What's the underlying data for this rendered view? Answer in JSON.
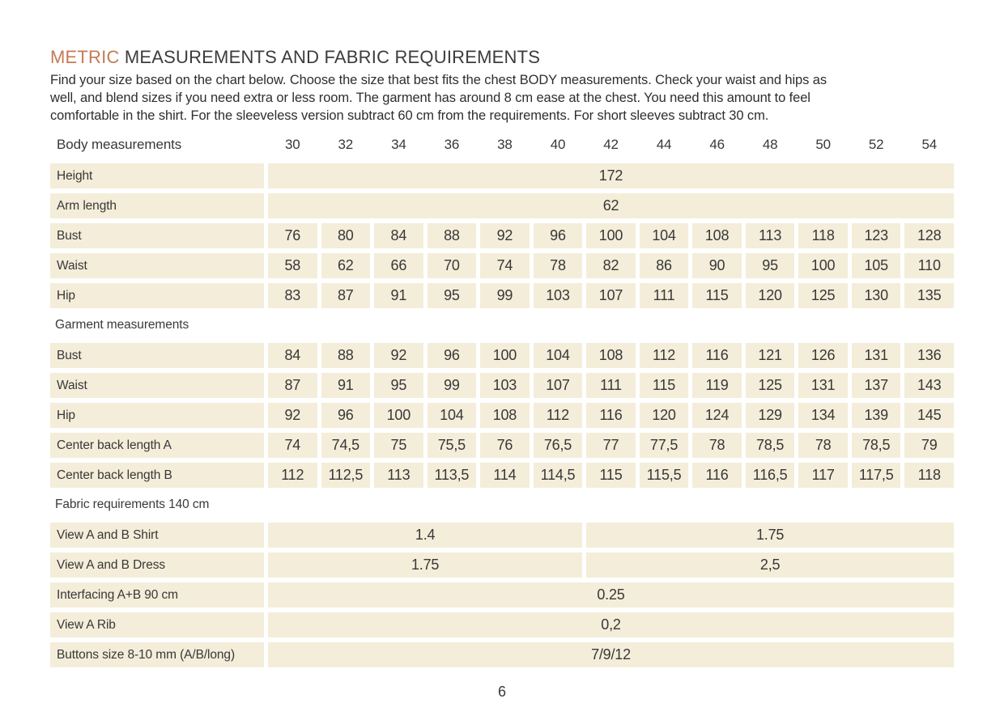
{
  "title": {
    "accent": "METRIC",
    "rest": " MEASUREMENTS AND FABRIC REQUIREMENTS"
  },
  "intro": {
    "line1": "Find your size based on the chart below. Choose the size that best fits the chest BODY measurements.  Check your waist and hips as",
    "line2": "well, and blend sizes if you need extra or less room. The garment has around 8 cm ease at the chest. You need this amount to feel",
    "line3": "comfortable in the shirt. For the sleeveless version subtract 60 cm from the requirements. For short sleeves subtract 30 cm."
  },
  "colors": {
    "accent": "#c57a55",
    "cell_background": "#f4edd9",
    "text": "#3a3a3a"
  },
  "table": {
    "header": {
      "label": "Body measurements",
      "sizes": [
        "30",
        "32",
        "34",
        "36",
        "38",
        "40",
        "42",
        "44",
        "46",
        "48",
        "50",
        "52",
        "54"
      ]
    },
    "rows": [
      {
        "type": "merged",
        "label": "Height",
        "value": "172"
      },
      {
        "type": "merged",
        "label": "Arm length",
        "value": "62"
      },
      {
        "type": "cells",
        "label": "Bust",
        "values": [
          "76",
          "80",
          "84",
          "88",
          "92",
          "96",
          "100",
          "104",
          "108",
          "113",
          "118",
          "123",
          "128"
        ]
      },
      {
        "type": "cells",
        "label": "Waist",
        "values": [
          "58",
          "62",
          "66",
          "70",
          "74",
          "78",
          "82",
          "86",
          "90",
          "95",
          "100",
          "105",
          "110"
        ]
      },
      {
        "type": "cells",
        "label": "Hip",
        "values": [
          "83",
          "87",
          "91",
          "95",
          "99",
          "103",
          "107",
          "111",
          "115",
          "120",
          "125",
          "130",
          "135"
        ]
      },
      {
        "type": "section",
        "label": "Garment measurements"
      },
      {
        "type": "cells",
        "label": "Bust",
        "values": [
          "84",
          "88",
          "92",
          "96",
          "100",
          "104",
          "108",
          "112",
          "116",
          "121",
          "126",
          "131",
          "136"
        ]
      },
      {
        "type": "cells",
        "label": "Waist",
        "values": [
          "87",
          "91",
          "95",
          "99",
          "103",
          "107",
          "111",
          "115",
          "119",
          "125",
          "131",
          "137",
          "143"
        ]
      },
      {
        "type": "cells",
        "label": "Hip",
        "values": [
          "92",
          "96",
          "100",
          "104",
          "108",
          "112",
          "116",
          "120",
          "124",
          "129",
          "134",
          "139",
          "145"
        ]
      },
      {
        "type": "cells",
        "label": "Center back length A",
        "values": [
          "74",
          "74,5",
          "75",
          "75,5",
          "76",
          "76,5",
          "77",
          "77,5",
          "78",
          "78,5",
          "78",
          "78,5",
          "79"
        ]
      },
      {
        "type": "cells",
        "label": "Center back length B",
        "values": [
          "112",
          "112,5",
          "113",
          "113,5",
          "114",
          "114,5",
          "115",
          "115,5",
          "116",
          "116,5",
          "117",
          "117,5",
          "118"
        ]
      },
      {
        "type": "section",
        "label": "Fabric requirements 140 cm"
      },
      {
        "type": "split",
        "label": "View A and B Shirt",
        "left": "1.4",
        "right": "1.75"
      },
      {
        "type": "split",
        "label": "View A and B Dress",
        "left": "1.75",
        "right": "2,5"
      },
      {
        "type": "merged",
        "label": "Interfacing A+B 90 cm",
        "value": "0.25"
      },
      {
        "type": "merged",
        "label": "View A Rib",
        "value": "0,2"
      },
      {
        "type": "merged",
        "label": "Buttons size 8-10 mm (A/B/long)",
        "value": "7/9/12"
      }
    ]
  },
  "footer": {
    "page_number": "6"
  }
}
